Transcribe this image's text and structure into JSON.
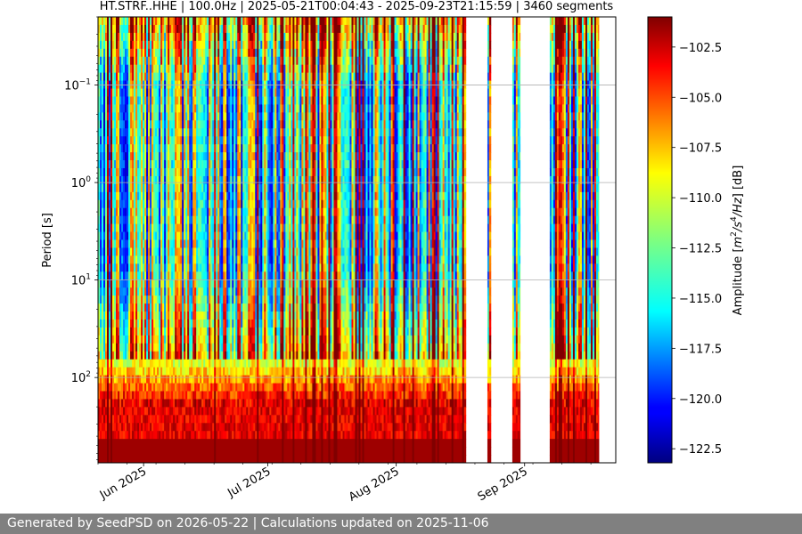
{
  "chart_data": {
    "type": "heatmap",
    "title": "HT.STRF..HHE | 100.0Hz | 2025-05-21T00:04:43 - 2025-09-23T21:15:59 | 3460 segments",
    "ylabel": "Period [s]",
    "xlabel": "",
    "y_scale": "log",
    "y_inverted": true,
    "x_range": [
      "2025-05-21",
      "2025-09-23"
    ],
    "y_range": [
      0.02,
      750
    ],
    "x_ticks": [
      {
        "date": "2025-06-01",
        "label": "Jun 2025"
      },
      {
        "date": "2025-07-01",
        "label": "Jul 2025"
      },
      {
        "date": "2025-08-01",
        "label": "Aug 2025"
      },
      {
        "date": "2025-09-01",
        "label": "Sep 2025"
      }
    ],
    "y_ticks": [
      {
        "value": 0.1,
        "base": "10",
        "exp": "−1"
      },
      {
        "value": 1,
        "base": "10",
        "exp": "0"
      },
      {
        "value": 10,
        "base": "10",
        "exp": "1"
      },
      {
        "value": 100,
        "base": "10",
        "exp": "2"
      }
    ],
    "grid": true,
    "data_gaps": [
      [
        "2025-08-18",
        "2025-08-22"
      ],
      [
        "2025-08-24",
        "2025-08-28"
      ],
      [
        "2025-08-31",
        "2025-09-03"
      ],
      [
        "2025-09-03",
        "2025-09-06"
      ],
      [
        "2025-09-19",
        "2025-09-19"
      ],
      [
        "2025-09-20",
        "2025-09-23"
      ]
    ],
    "colorbar": {
      "label_prefix": "Amplitude [",
      "label_units_a": "m",
      "label_sup_a": "2",
      "label_units_b": "/s",
      "label_sup_b": "4",
      "label_units_c": "/Hz",
      "label_suffix": "] [dB]",
      "range": [
        -123.2,
        -101.0
      ],
      "ticks": [
        "-102.5",
        "-105.0",
        "-107.5",
        "-110.0",
        "-112.5",
        "-115.0",
        "-117.5",
        "-120.0",
        "-122.5"
      ],
      "colormap": "jet"
    }
  },
  "footer": {
    "text": "Generated by SeedPSD on 2026-05-22 | Calculations updated on 2025-11-06"
  }
}
